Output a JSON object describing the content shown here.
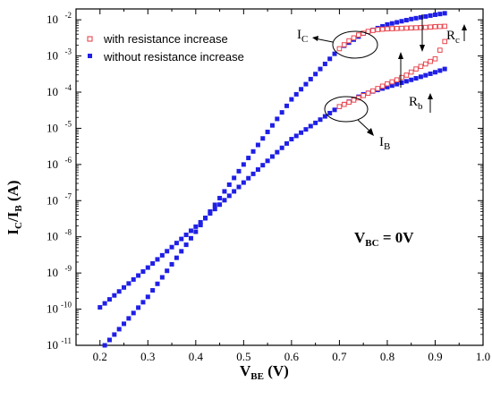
{
  "chart_data": {
    "type": "scatter",
    "y_scale": "log",
    "xlim": [
      0.15,
      1.0
    ],
    "ylim_exp": [
      -11,
      -1.7
    ],
    "x_ticks": [
      "0.2",
      "0.3",
      "0.4",
      "0.5",
      "0.6",
      "0.7",
      "0.8",
      "0.9",
      "1.0"
    ],
    "x_tick_values": [
      0.2,
      0.3,
      0.4,
      0.5,
      0.6,
      0.7,
      0.8,
      0.9,
      1.0
    ],
    "y_tick_exponents": [
      -11,
      -10,
      -9,
      -8,
      -7,
      -6,
      -5,
      -4,
      -3,
      -2
    ],
    "y_tick_base": "10",
    "xlabel": {
      "main": "V",
      "sub": "BE",
      "tail": " (V)"
    },
    "ylabel": {
      "a": "I",
      "a_sub": "C",
      "sep": "/I",
      "b_sub": "B",
      "tail": " (A)"
    },
    "legend": {
      "position": "top-left",
      "items": [
        {
          "label": "with resistance increase",
          "marker": "open-square",
          "color": "#e8474f"
        },
        {
          "label": "without resistance increase",
          "marker": "filled-square",
          "color": "#1f1fe6"
        }
      ]
    },
    "annotations": {
      "ic": {
        "main": "I",
        "sub": "C"
      },
      "ib": {
        "main": "I",
        "sub": "B"
      },
      "rc": {
        "main": "R",
        "sub": "c"
      },
      "rb": {
        "main": "R",
        "sub": "b"
      },
      "vbc": {
        "main": "V",
        "sub": "BC",
        "tail": " = 0V"
      }
    },
    "series": [
      {
        "name": "with resistance increase",
        "marker": "open-square",
        "color": "#e8474f",
        "curves": [
          {
            "label": "IC",
            "x": [
              0.7,
              0.72,
              0.74,
              0.76,
              0.78,
              0.8,
              0.82,
              0.84,
              0.86,
              0.88,
              0.9,
              0.92
            ],
            "log10_y": [
              -2.8,
              -2.58,
              -2.42,
              -2.32,
              -2.27,
              -2.25,
              -2.24,
              -2.23,
              -2.22,
              -2.21,
              -2.19,
              -2.18
            ]
          },
          {
            "label": "IB",
            "x": [
              0.7,
              0.72,
              0.74,
              0.76,
              0.78,
              0.8,
              0.82,
              0.84,
              0.86,
              0.88,
              0.9,
              0.92
            ],
            "log10_y": [
              -4.4,
              -4.28,
              -4.16,
              -4.03,
              -3.9,
              -3.77,
              -3.66,
              -3.53,
              -3.36,
              -3.22,
              -3.08,
              -2.6
            ]
          }
        ]
      },
      {
        "name": "without resistance increase",
        "marker": "filled-square",
        "color": "#1f1fe6",
        "curves": [
          {
            "label": "IC",
            "x": [
              0.21,
              0.3,
              0.4,
              0.5,
              0.6,
              0.7,
              0.75,
              0.8,
              0.85,
              0.9,
              0.92
            ],
            "log10_y": [
              -11.0,
              -9.66,
              -7.86,
              -6.0,
              -4.2,
              -2.8,
              -2.38,
              -2.13,
              -1.98,
              -1.86,
              -1.82
            ]
          },
          {
            "label": "IB",
            "x": [
              0.2,
              0.3,
              0.4,
              0.5,
              0.6,
              0.7,
              0.75,
              0.8,
              0.85,
              0.9,
              0.92
            ],
            "log10_y": [
              -9.95,
              -8.85,
              -7.72,
              -6.5,
              -5.3,
              -4.4,
              -4.06,
              -3.86,
              -3.66,
              -3.45,
              -3.36
            ]
          }
        ]
      }
    ]
  }
}
